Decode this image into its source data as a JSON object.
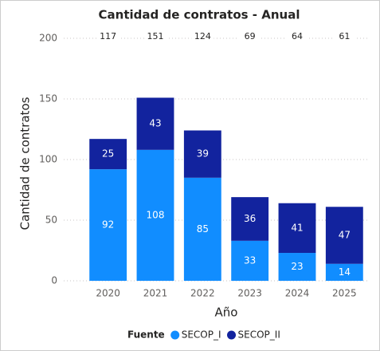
{
  "chart_data": {
    "type": "stacked_bar",
    "title": "Cantidad de contratos - Anual",
    "x_label": "Año",
    "y_label": "Cantidad de contratos",
    "categories": [
      "2020",
      "2021",
      "2022",
      "2023",
      "2024",
      "2025"
    ],
    "series": [
      {
        "name": "SECOP_I",
        "color": "#118DFF",
        "values": [
          92,
          108,
          85,
          33,
          23,
          14
        ]
      },
      {
        "name": "SECOP_II",
        "color": "#12239E",
        "values": [
          25,
          43,
          39,
          36,
          41,
          47
        ]
      }
    ],
    "totals": [
      117,
      151,
      124,
      69,
      64,
      61
    ],
    "legend_title": "Fuente",
    "legend_position": "bottom",
    "ylim": [
      0,
      200
    ],
    "yticks": [
      0,
      50,
      100,
      150,
      200
    ],
    "grid": true
  }
}
